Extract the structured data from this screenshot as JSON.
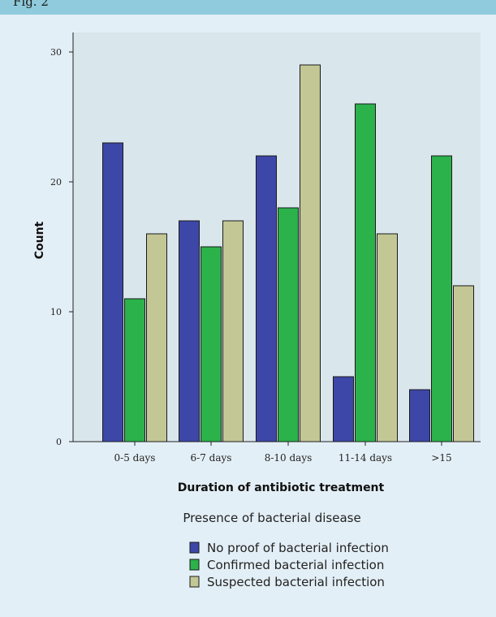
{
  "header": {
    "text": "Fig. 2"
  },
  "colors": {
    "page_bg": "#e3eff6",
    "header_band": "#8fcbdc",
    "plot_bg": "#d9e6ec"
  },
  "chart_data": {
    "type": "bar",
    "title": "",
    "xlabel": "Duration of antibiotic treatment",
    "ylabel": "Count",
    "categories": [
      "0-5 days",
      "6-7 days",
      "8-10 days",
      "11-14 days",
      ">15"
    ],
    "ylim": [
      0,
      31.5
    ],
    "yticks": [
      0,
      10,
      20,
      30
    ],
    "grid": false,
    "legend_title": "Presence of bacterial disease",
    "legend_position": "bottom",
    "series": [
      {
        "name": "No proof of bacterial infection",
        "color": "#3d47a8",
        "values": [
          23,
          17,
          22,
          5,
          4
        ]
      },
      {
        "name": "Confirmed bacterial infection",
        "color": "#2bb24a",
        "values": [
          11,
          15,
          18,
          26,
          22
        ]
      },
      {
        "name": "Suspected bacterial infection",
        "color": "#c2c795",
        "values": [
          16,
          17,
          29,
          16,
          12
        ]
      }
    ]
  }
}
